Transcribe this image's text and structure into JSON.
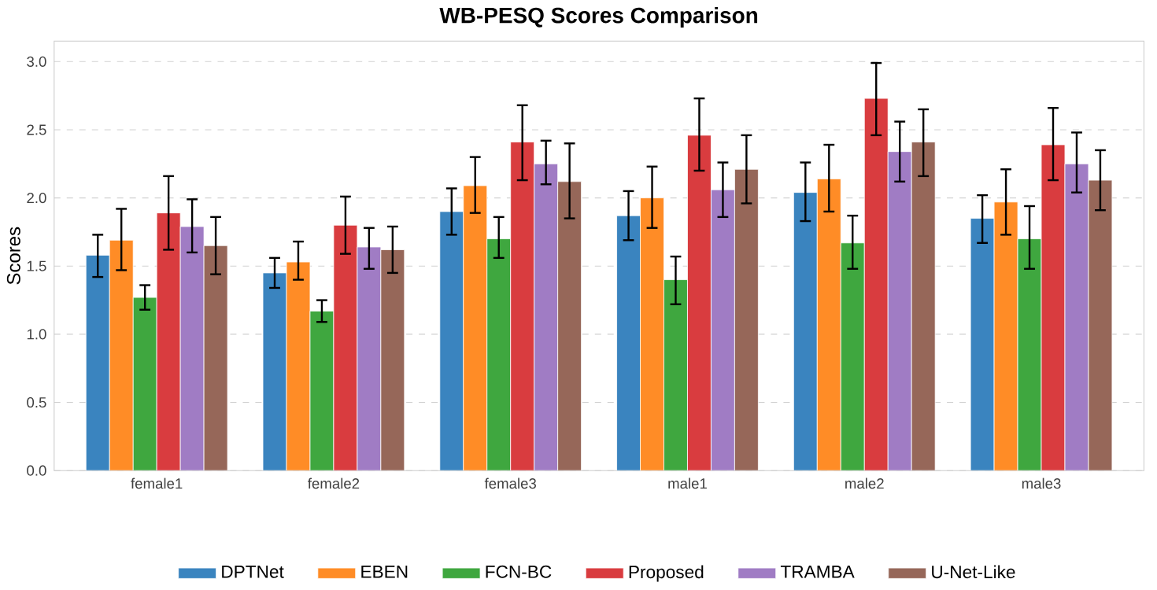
{
  "chart_data": {
    "type": "bar",
    "title": "WB-PESQ Scores Comparison",
    "ylabel": "Scores",
    "categories": [
      "female1",
      "female2",
      "female3",
      "male1",
      "male2",
      "male3"
    ],
    "series": [
      {
        "name": "DPTNet",
        "color": "#3a84bf",
        "values": [
          1.58,
          1.45,
          1.9,
          1.87,
          2.04,
          1.85
        ],
        "errors": [
          [
            1.42,
            1.73
          ],
          [
            1.34,
            1.56
          ],
          [
            1.73,
            2.07
          ],
          [
            1.69,
            2.05
          ],
          [
            1.83,
            2.26
          ],
          [
            1.67,
            2.02
          ]
        ]
      },
      {
        "name": "EBEN",
        "color": "#ff8c26",
        "values": [
          1.69,
          1.53,
          2.09,
          2.0,
          2.14,
          1.97
        ],
        "errors": [
          [
            1.47,
            1.92
          ],
          [
            1.4,
            1.68
          ],
          [
            1.89,
            2.3
          ],
          [
            1.78,
            2.23
          ],
          [
            1.9,
            2.39
          ],
          [
            1.73,
            2.21
          ]
        ]
      },
      {
        "name": "FCN-BC",
        "color": "#3fa73f",
        "values": [
          1.27,
          1.17,
          1.7,
          1.4,
          1.67,
          1.7
        ],
        "errors": [
          [
            1.18,
            1.36
          ],
          [
            1.09,
            1.25
          ],
          [
            1.56,
            1.86
          ],
          [
            1.22,
            1.57
          ],
          [
            1.48,
            1.87
          ],
          [
            1.48,
            1.94
          ]
        ]
      },
      {
        "name": "Proposed",
        "color": "#d93c3f",
        "values": [
          1.89,
          1.8,
          2.41,
          2.46,
          2.73,
          2.39
        ],
        "errors": [
          [
            1.62,
            2.16
          ],
          [
            1.59,
            2.01
          ],
          [
            2.13,
            2.68
          ],
          [
            2.2,
            2.73
          ],
          [
            2.46,
            2.99
          ],
          [
            2.13,
            2.66
          ]
        ]
      },
      {
        "name": "TRAMBA",
        "color": "#a07cc4",
        "values": [
          1.79,
          1.64,
          2.25,
          2.06,
          2.34,
          2.25
        ],
        "errors": [
          [
            1.6,
            1.99
          ],
          [
            1.48,
            1.78
          ],
          [
            2.1,
            2.42
          ],
          [
            1.86,
            2.26
          ],
          [
            2.12,
            2.56
          ],
          [
            2.04,
            2.48
          ]
        ]
      },
      {
        "name": "U-Net-Like",
        "color": "#966759",
        "values": [
          1.65,
          1.62,
          2.12,
          2.21,
          2.41,
          2.13
        ],
        "errors": [
          [
            1.44,
            1.86
          ],
          [
            1.45,
            1.79
          ],
          [
            1.85,
            2.4
          ],
          [
            1.96,
            2.46
          ],
          [
            2.16,
            2.65
          ],
          [
            1.91,
            2.35
          ]
        ]
      }
    ],
    "ylim": [
      0,
      3.15
    ],
    "yticks": [
      {
        "value": 0,
        "label": "0.0"
      },
      {
        "value": 0.5,
        "label": "0.5"
      },
      {
        "value": 1,
        "label": "1.0"
      },
      {
        "value": 1.5,
        "label": "1.5"
      },
      {
        "value": 2,
        "label": "2.0"
      },
      {
        "value": 2.5,
        "label": "2.5"
      },
      {
        "value": 3,
        "label": "3.0"
      }
    ],
    "grid": "y",
    "legend": "bottom"
  }
}
